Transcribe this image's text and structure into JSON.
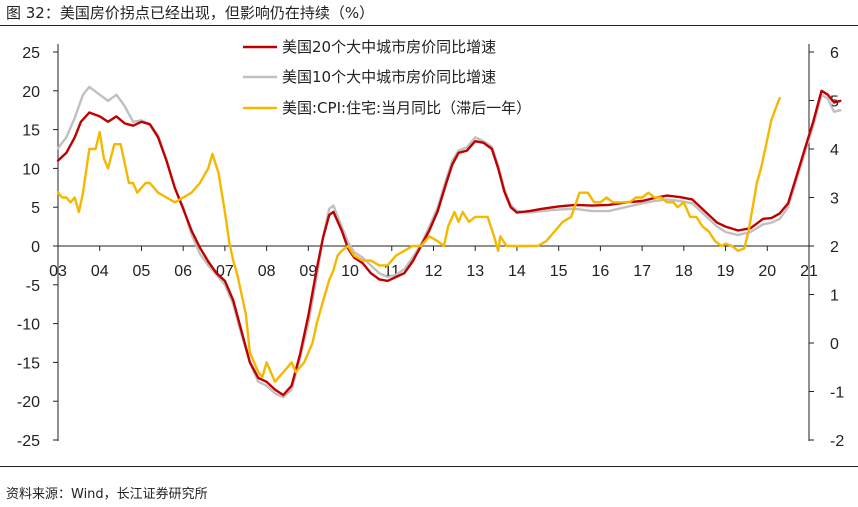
{
  "figure": {
    "title": "图 32：美国房价拐点已经出现，但影响仍在持续（%）",
    "source": "资料来源：Wind，长江证券研究所"
  },
  "colors": {
    "series_20": "#c00000",
    "series_10": "#c0c0c0",
    "series_cpi": "#f5b800",
    "axis": "#222222"
  },
  "chart_data": {
    "type": "line",
    "x_ticks": [
      "03",
      "04",
      "05",
      "06",
      "07",
      "08",
      "09",
      "10",
      "11",
      "12",
      "13",
      "14",
      "15",
      "16",
      "17",
      "18",
      "19",
      "20",
      "21"
    ],
    "x_range": [
      2003,
      2021
    ],
    "y_left": {
      "range": [
        -25,
        25
      ],
      "ticks": [
        25,
        20,
        15,
        10,
        5,
        0,
        -5,
        -10,
        -15,
        -20,
        -25
      ]
    },
    "y_right": {
      "range": [
        -2,
        6
      ],
      "ticks": [
        6,
        5,
        4,
        3,
        2,
        1,
        0,
        -1,
        -2
      ]
    },
    "legend_position": "top-center",
    "series": [
      {
        "name": "美国20个大中城市房价同比增速",
        "axis": "left",
        "points": [
          [
            2003.0,
            11
          ],
          [
            2003.2,
            12
          ],
          [
            2003.4,
            14
          ],
          [
            2003.55,
            16
          ],
          [
            2003.75,
            17.2
          ],
          [
            2004.0,
            16.7
          ],
          [
            2004.2,
            16
          ],
          [
            2004.4,
            16.7
          ],
          [
            2004.6,
            15.8
          ],
          [
            2004.8,
            15.5
          ],
          [
            2005.0,
            16
          ],
          [
            2005.2,
            15.7
          ],
          [
            2005.4,
            14
          ],
          [
            2005.6,
            11
          ],
          [
            2005.8,
            7.5
          ],
          [
            2006.0,
            4.8
          ],
          [
            2006.2,
            2
          ],
          [
            2006.4,
            -0.2
          ],
          [
            2006.6,
            -2
          ],
          [
            2006.8,
            -3.5
          ],
          [
            2007.0,
            -4.5
          ],
          [
            2007.2,
            -7
          ],
          [
            2007.4,
            -11
          ],
          [
            2007.6,
            -15
          ],
          [
            2007.8,
            -17
          ],
          [
            2008.0,
            -17.5
          ],
          [
            2008.2,
            -18.5
          ],
          [
            2008.4,
            -19.2
          ],
          [
            2008.6,
            -18
          ],
          [
            2008.8,
            -14
          ],
          [
            2009.0,
            -9
          ],
          [
            2009.2,
            -3
          ],
          [
            2009.35,
            1
          ],
          [
            2009.5,
            4
          ],
          [
            2009.6,
            4.4
          ],
          [
            2009.8,
            2
          ],
          [
            2009.95,
            -0.3
          ],
          [
            2010.1,
            -1.5
          ],
          [
            2010.3,
            -2.2
          ],
          [
            2010.5,
            -3.5
          ],
          [
            2010.7,
            -4.3
          ],
          [
            2010.9,
            -4.5
          ],
          [
            2011.1,
            -4
          ],
          [
            2011.3,
            -3.5
          ],
          [
            2011.5,
            -2
          ],
          [
            2011.7,
            0
          ],
          [
            2011.9,
            2
          ],
          [
            2012.1,
            4.5
          ],
          [
            2012.3,
            8
          ],
          [
            2012.45,
            10.5
          ],
          [
            2012.6,
            12
          ],
          [
            2012.8,
            12.3
          ],
          [
            2013.0,
            13.5
          ],
          [
            2013.2,
            13.3
          ],
          [
            2013.4,
            12.5
          ],
          [
            2013.55,
            10
          ],
          [
            2013.7,
            7
          ],
          [
            2013.85,
            5
          ],
          [
            2014.0,
            4.3
          ],
          [
            2014.3,
            4.5
          ],
          [
            2014.6,
            4.8
          ],
          [
            2015.0,
            5.1
          ],
          [
            2015.4,
            5.3
          ],
          [
            2015.8,
            5.2
          ],
          [
            2016.2,
            5.3
          ],
          [
            2016.6,
            5.6
          ],
          [
            2017.0,
            5.8
          ],
          [
            2017.3,
            6.2
          ],
          [
            2017.6,
            6.5
          ],
          [
            2017.9,
            6.3
          ],
          [
            2018.2,
            6.0
          ],
          [
            2018.5,
            4.5
          ],
          [
            2018.8,
            3.0
          ],
          [
            2019.0,
            2.5
          ],
          [
            2019.3,
            2.0
          ],
          [
            2019.6,
            2.3
          ],
          [
            2019.9,
            3.5
          ],
          [
            2020.1,
            3.6
          ],
          [
            2020.3,
            4.2
          ],
          [
            2020.5,
            5.5
          ],
          [
            2020.7,
            9
          ],
          [
            2020.9,
            12.5
          ],
          [
            2021.1,
            16
          ],
          [
            2021.3,
            20
          ],
          [
            2021.45,
            19.5
          ],
          [
            2021.6,
            18.5
          ],
          [
            2021.75,
            18.7
          ]
        ]
      },
      {
        "name": "美国10个大中城市房价同比增速",
        "axis": "left",
        "points": [
          [
            2003.0,
            12.6
          ],
          [
            2003.2,
            14
          ],
          [
            2003.4,
            16.5
          ],
          [
            2003.6,
            19.5
          ],
          [
            2003.75,
            20.5
          ],
          [
            2004.0,
            19.5
          ],
          [
            2004.2,
            18.7
          ],
          [
            2004.4,
            19.5
          ],
          [
            2004.6,
            18
          ],
          [
            2004.8,
            16
          ],
          [
            2005.0,
            16.2
          ],
          [
            2005.2,
            15.7
          ],
          [
            2005.4,
            14.3
          ],
          [
            2005.6,
            11
          ],
          [
            2005.8,
            7.5
          ],
          [
            2006.0,
            5
          ],
          [
            2006.2,
            1.5
          ],
          [
            2006.4,
            -1
          ],
          [
            2006.6,
            -2.5
          ],
          [
            2006.8,
            -3.7
          ],
          [
            2007.0,
            -5
          ],
          [
            2007.2,
            -7.5
          ],
          [
            2007.4,
            -11.5
          ],
          [
            2007.6,
            -15
          ],
          [
            2007.8,
            -17.5
          ],
          [
            2008.0,
            -18
          ],
          [
            2008.2,
            -19
          ],
          [
            2008.4,
            -19.5
          ],
          [
            2008.6,
            -18.5
          ],
          [
            2008.8,
            -14.5
          ],
          [
            2009.0,
            -10
          ],
          [
            2009.2,
            -4
          ],
          [
            2009.35,
            1
          ],
          [
            2009.5,
            4.8
          ],
          [
            2009.6,
            5.2
          ],
          [
            2009.8,
            2.5
          ],
          [
            2009.95,
            0.5
          ],
          [
            2010.1,
            -0.8
          ],
          [
            2010.3,
            -1.5
          ],
          [
            2010.5,
            -2.5
          ],
          [
            2010.7,
            -3.5
          ],
          [
            2010.9,
            -4
          ],
          [
            2011.1,
            -3.7
          ],
          [
            2011.3,
            -3
          ],
          [
            2011.5,
            -1.5
          ],
          [
            2011.7,
            0.2
          ],
          [
            2011.9,
            2.5
          ],
          [
            2012.1,
            5
          ],
          [
            2012.3,
            8.5
          ],
          [
            2012.45,
            11
          ],
          [
            2012.6,
            12.3
          ],
          [
            2012.8,
            12.7
          ],
          [
            2013.0,
            14
          ],
          [
            2013.2,
            13.5
          ],
          [
            2013.4,
            12.8
          ],
          [
            2013.55,
            10.3
          ],
          [
            2013.7,
            7.3
          ],
          [
            2013.85,
            5.3
          ],
          [
            2014.0,
            4.5
          ],
          [
            2014.3,
            4.3
          ],
          [
            2014.6,
            4.5
          ],
          [
            2015.0,
            4.7
          ],
          [
            2015.4,
            4.8
          ],
          [
            2015.8,
            4.5
          ],
          [
            2016.2,
            4.5
          ],
          [
            2016.6,
            5.0
          ],
          [
            2017.0,
            5.5
          ],
          [
            2017.3,
            5.8
          ],
          [
            2017.6,
            6.0
          ],
          [
            2017.9,
            5.8
          ],
          [
            2018.2,
            5.5
          ],
          [
            2018.5,
            4.0
          ],
          [
            2018.8,
            2.5
          ],
          [
            2019.0,
            1.8
          ],
          [
            2019.3,
            1.4
          ],
          [
            2019.6,
            1.8
          ],
          [
            2019.9,
            2.8
          ],
          [
            2020.1,
            3.0
          ],
          [
            2020.3,
            3.5
          ],
          [
            2020.5,
            5
          ],
          [
            2020.7,
            8.5
          ],
          [
            2020.9,
            12
          ],
          [
            2021.1,
            15.5
          ],
          [
            2021.3,
            19.5
          ],
          [
            2021.45,
            19
          ],
          [
            2021.6,
            17.3
          ],
          [
            2021.75,
            17.5
          ]
        ]
      },
      {
        "name": "美国:CPI:住宅:当月同比（滞后一年）",
        "axis": "right",
        "points": [
          [
            2003.0,
            3.1
          ],
          [
            2003.1,
            3.0
          ],
          [
            2003.2,
            3.0
          ],
          [
            2003.3,
            2.9
          ],
          [
            2003.4,
            3.0
          ],
          [
            2003.5,
            2.7
          ],
          [
            2003.6,
            3.1
          ],
          [
            2003.75,
            4.0
          ],
          [
            2003.9,
            4.0
          ],
          [
            2004.0,
            4.35
          ],
          [
            2004.1,
            3.8
          ],
          [
            2004.2,
            3.6
          ],
          [
            2004.35,
            4.1
          ],
          [
            2004.5,
            4.1
          ],
          [
            2004.6,
            3.7
          ],
          [
            2004.7,
            3.3
          ],
          [
            2004.8,
            3.3
          ],
          [
            2004.9,
            3.1
          ],
          [
            2005.0,
            3.2
          ],
          [
            2005.1,
            3.3
          ],
          [
            2005.2,
            3.3
          ],
          [
            2005.3,
            3.2
          ],
          [
            2005.4,
            3.1
          ],
          [
            2005.6,
            3.0
          ],
          [
            2005.8,
            2.9
          ],
          [
            2006.0,
            3.0
          ],
          [
            2006.2,
            3.1
          ],
          [
            2006.4,
            3.3
          ],
          [
            2006.6,
            3.6
          ],
          [
            2006.7,
            3.9
          ],
          [
            2006.85,
            3.5
          ],
          [
            2007.0,
            2.7
          ],
          [
            2007.1,
            2.1
          ],
          [
            2007.2,
            1.7
          ],
          [
            2007.3,
            1.4
          ],
          [
            2007.4,
            1.0
          ],
          [
            2007.5,
            0.6
          ],
          [
            2007.6,
            -0.2
          ],
          [
            2007.7,
            -0.4
          ],
          [
            2007.8,
            -0.6
          ],
          [
            2007.9,
            -0.7
          ],
          [
            2008.0,
            -0.4
          ],
          [
            2008.1,
            -0.6
          ],
          [
            2008.2,
            -0.8
          ],
          [
            2008.3,
            -0.7
          ],
          [
            2008.4,
            -0.6
          ],
          [
            2008.5,
            -0.5
          ],
          [
            2008.6,
            -0.4
          ],
          [
            2008.7,
            -0.6
          ],
          [
            2008.8,
            -0.5
          ],
          [
            2008.9,
            -0.4
          ],
          [
            2009.0,
            -0.2
          ],
          [
            2009.1,
            0.0
          ],
          [
            2009.2,
            0.4
          ],
          [
            2009.3,
            0.7
          ],
          [
            2009.4,
            1.0
          ],
          [
            2009.5,
            1.3
          ],
          [
            2009.6,
            1.5
          ],
          [
            2009.7,
            1.8
          ],
          [
            2009.8,
            1.9
          ],
          [
            2009.95,
            2.0
          ],
          [
            2010.1,
            1.8
          ],
          [
            2010.3,
            1.7
          ],
          [
            2010.5,
            1.7
          ],
          [
            2010.7,
            1.6
          ],
          [
            2010.9,
            1.6
          ],
          [
            2011.1,
            1.8
          ],
          [
            2011.3,
            1.9
          ],
          [
            2011.5,
            2.0
          ],
          [
            2011.7,
            2.0
          ],
          [
            2011.9,
            2.2
          ],
          [
            2012.1,
            2.1
          ],
          [
            2012.25,
            2.0
          ],
          [
            2012.35,
            2.4
          ],
          [
            2012.5,
            2.7
          ],
          [
            2012.6,
            2.5
          ],
          [
            2012.7,
            2.7
          ],
          [
            2012.85,
            2.5
          ],
          [
            2013.0,
            2.6
          ],
          [
            2013.15,
            2.6
          ],
          [
            2013.3,
            2.6
          ],
          [
            2013.45,
            2.2
          ],
          [
            2013.55,
            1.9
          ],
          [
            2013.6,
            2.2
          ],
          [
            2013.75,
            2.0
          ],
          [
            2013.9,
            2.0
          ],
          [
            2014.1,
            2.0
          ],
          [
            2014.3,
            2.0
          ],
          [
            2014.5,
            2.0
          ],
          [
            2014.7,
            2.1
          ],
          [
            2014.9,
            2.3
          ],
          [
            2015.1,
            2.5
          ],
          [
            2015.3,
            2.6
          ],
          [
            2015.5,
            3.1
          ],
          [
            2015.7,
            3.1
          ],
          [
            2015.85,
            2.9
          ],
          [
            2016.0,
            2.9
          ],
          [
            2016.15,
            3.0
          ],
          [
            2016.3,
            2.9
          ],
          [
            2016.5,
            2.9
          ],
          [
            2016.7,
            2.9
          ],
          [
            2016.85,
            3.0
          ],
          [
            2017.0,
            3.0
          ],
          [
            2017.15,
            3.1
          ],
          [
            2017.3,
            3.0
          ],
          [
            2017.45,
            3.0
          ],
          [
            2017.6,
            2.9
          ],
          [
            2017.75,
            2.9
          ],
          [
            2017.85,
            2.8
          ],
          [
            2018.0,
            2.9
          ],
          [
            2018.15,
            2.6
          ],
          [
            2018.3,
            2.6
          ],
          [
            2018.45,
            2.4
          ],
          [
            2018.6,
            2.3
          ],
          [
            2018.75,
            2.1
          ],
          [
            2018.9,
            2.0
          ],
          [
            2019.0,
            2.05
          ],
          [
            2019.15,
            2.0
          ],
          [
            2019.3,
            1.9
          ],
          [
            2019.45,
            1.95
          ],
          [
            2019.55,
            2.3
          ],
          [
            2019.65,
            2.8
          ],
          [
            2019.75,
            3.3
          ],
          [
            2019.85,
            3.6
          ],
          [
            2019.95,
            4.0
          ],
          [
            2020.1,
            4.6
          ],
          [
            2020.25,
            4.95
          ],
          [
            2020.3,
            5.05
          ]
        ]
      }
    ]
  }
}
